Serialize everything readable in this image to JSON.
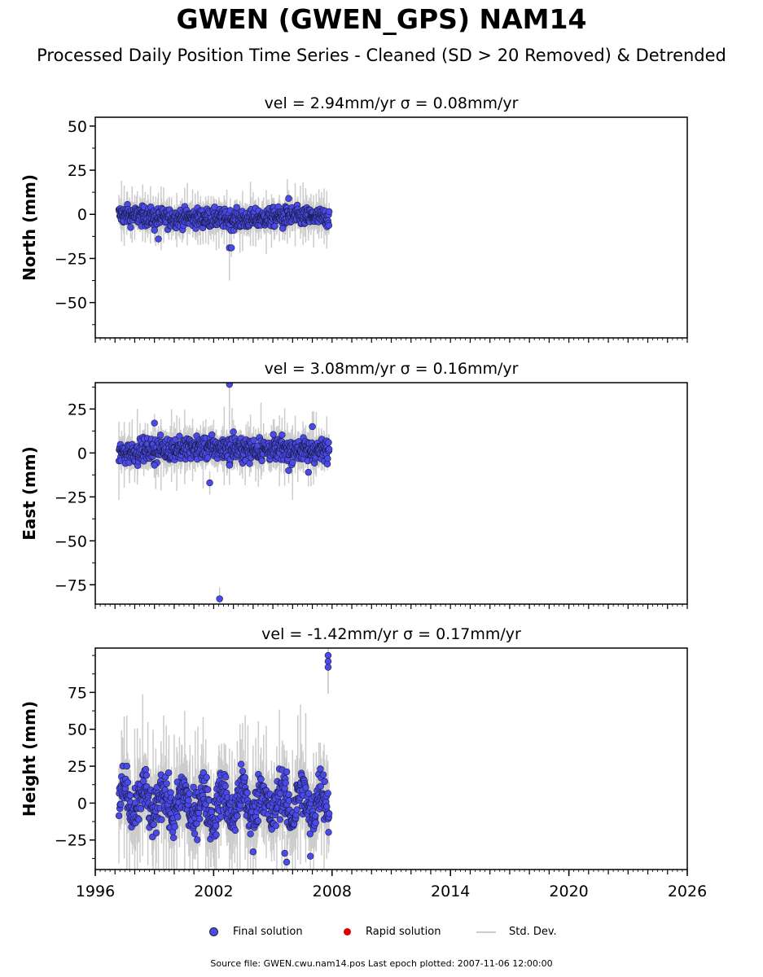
{
  "title": "GWEN (GWEN_GPS) NAM14",
  "subtitle": "Processed Daily Position Time Series - Cleaned (SD > 20 Removed) & Detrended",
  "chart_data": [
    {
      "type": "scatter",
      "title": "vel = 2.94mm/yr   σ = 0.08mm/yr",
      "ylabel": "North (mm)",
      "ylim": [
        -70,
        55
      ],
      "yticks": [
        -50,
        -25,
        0,
        25,
        50
      ],
      "xlim": [
        1996,
        2026
      ],
      "xticks": [
        1996,
        2002,
        2008,
        2014,
        2020,
        2026
      ],
      "data_span": [
        1997.2,
        2007.85
      ],
      "band": {
        "center": [
          0,
          -2,
          -2,
          -3,
          -1,
          -2
        ],
        "spread": 5
      },
      "outliers": [
        [
          2002.8,
          -19
        ],
        [
          2002.9,
          -19
        ],
        [
          2005.8,
          9
        ],
        [
          1999.2,
          -14
        ],
        [
          1999.0,
          -9
        ],
        [
          2005.5,
          -8
        ]
      ]
    },
    {
      "type": "scatter",
      "title": "vel = 3.08mm/yr   σ = 0.16mm/yr",
      "ylabel": "East (mm)",
      "ylim": [
        -86,
        40
      ],
      "yticks": [
        -75,
        -50,
        -25,
        0,
        25
      ],
      "xlim": [
        1996,
        2026
      ],
      "xticks": [
        1996,
        2002,
        2008,
        2014,
        2020,
        2026
      ],
      "data_span": [
        1997.2,
        2007.85
      ],
      "band": {
        "center": [
          0,
          2,
          3,
          2,
          2,
          1
        ],
        "spread": 6
      },
      "outliers": [
        [
          2002.8,
          39
        ],
        [
          2002.3,
          -83
        ],
        [
          2001.8,
          -17
        ],
        [
          1999.0,
          17
        ],
        [
          1999.0,
          -7
        ],
        [
          2007.0,
          15
        ],
        [
          2005.8,
          -10
        ],
        [
          2006.8,
          -11
        ],
        [
          2003.0,
          12
        ],
        [
          2002.8,
          -7
        ]
      ]
    },
    {
      "type": "scatter",
      "title": "vel = -1.42mm/yr   σ = 0.17mm/yr",
      "ylabel": "Height (mm)",
      "ylim": [
        -45,
        105
      ],
      "yticks": [
        -25,
        0,
        25,
        50,
        75
      ],
      "xlim": [
        1996,
        2026
      ],
      "xticks": [
        1996,
        2002,
        2008,
        2014,
        2020,
        2026
      ],
      "data_span": [
        1997.2,
        2007.85
      ],
      "band": {
        "center": [
          0,
          0,
          -2,
          0,
          0,
          0
        ],
        "spread": 15
      },
      "outliers": [
        [
          2007.8,
          100
        ],
        [
          2007.8,
          96
        ],
        [
          2007.8,
          92
        ],
        [
          2005.7,
          -40
        ],
        [
          2005.6,
          -34
        ],
        [
          2006.9,
          -36
        ],
        [
          2004.0,
          -33
        ],
        [
          1997.6,
          25
        ]
      ]
    }
  ],
  "legend": {
    "final": {
      "label": "Final solution",
      "color": "#4a4ae8"
    },
    "rapid": {
      "label": "Rapid solution",
      "color": "#dd0000"
    },
    "std": {
      "label": "Std. Dev.",
      "color": "#cccccc"
    }
  },
  "source": "Source file: GWEN.cwu.nam14.pos  Last epoch plotted: 2007-11-06 12:00:00"
}
